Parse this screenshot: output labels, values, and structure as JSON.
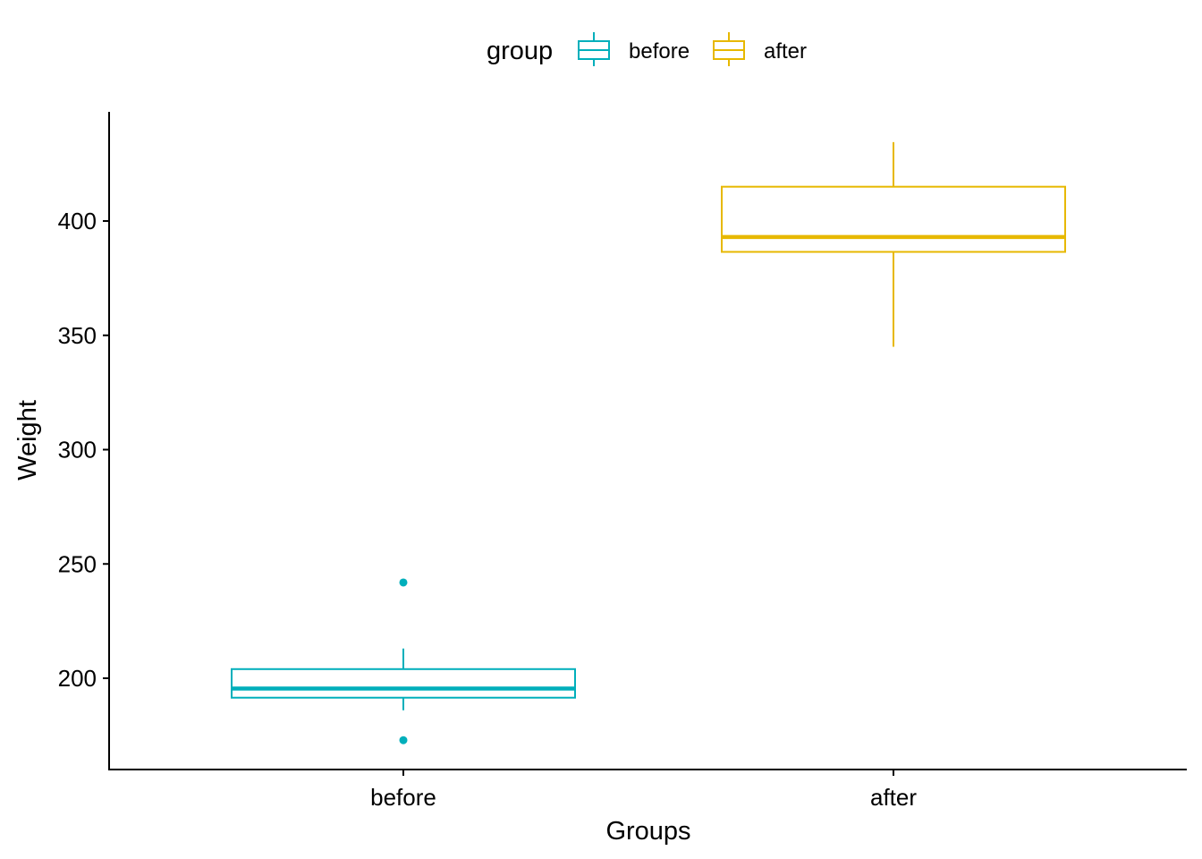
{
  "chart_data": {
    "type": "box",
    "xlabel": "Groups",
    "ylabel": "Weight",
    "ylim": [
      162,
      444
    ],
    "yticks": [
      200,
      250,
      300,
      350,
      400
    ],
    "grid": false,
    "legend": {
      "title": "group",
      "position": "top",
      "entries": [
        {
          "label": "before",
          "color": "#00AFBB"
        },
        {
          "label": "after",
          "color": "#E7B800"
        }
      ]
    },
    "categories": [
      "before",
      "after"
    ],
    "boxes": [
      {
        "category": "before",
        "color": "#00AFBB",
        "whisker_low": 186,
        "q1": 191.5,
        "median": 195.5,
        "q3": 204,
        "whisker_high": 213,
        "outliers": [
          241.9,
          172.9
        ]
      },
      {
        "category": "after",
        "color": "#E7B800",
        "whisker_low": 345,
        "q1": 386.5,
        "median": 393,
        "q3": 415,
        "whisker_high": 434.5,
        "outliers": []
      }
    ]
  }
}
